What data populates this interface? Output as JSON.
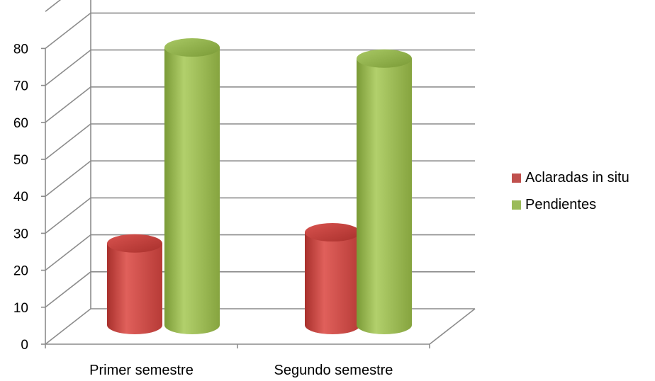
{
  "chart_data": {
    "type": "bar",
    "categories": [
      "Primer semestre",
      "Segundo semestre"
    ],
    "series": [
      {
        "name": "Aclaradas in situ",
        "values": [
          24,
          27
        ],
        "color": "#c0504d"
      },
      {
        "name": "Pendientes",
        "values": [
          77,
          74
        ],
        "color": "#9bbb59"
      }
    ],
    "y_ticks": [
      "0",
      "10",
      "20",
      "30",
      "40",
      "50",
      "60",
      "70",
      "80"
    ],
    "ylim": [
      0,
      90
    ],
    "grid": true,
    "legend": "right",
    "style": "3d-cylinder"
  }
}
